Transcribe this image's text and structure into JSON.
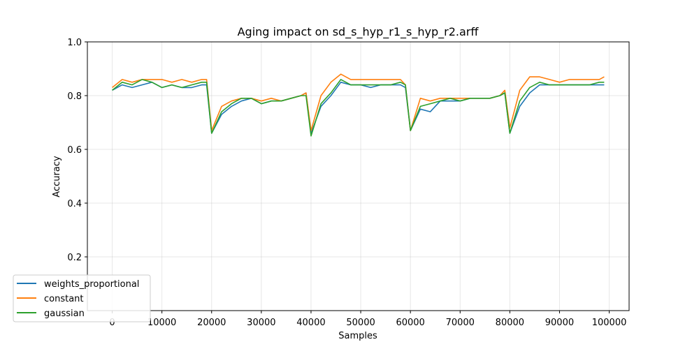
{
  "chart_data": {
    "type": "line",
    "title": "Aging impact on sd_s_hyp_r1_s_hyp_r2.arff",
    "xlabel": "Samples",
    "ylabel": "Accuracy",
    "xlim": [
      -5000,
      104000
    ],
    "ylim": [
      0.0,
      1.0
    ],
    "xticks": [
      0,
      10000,
      20000,
      30000,
      40000,
      50000,
      60000,
      70000,
      80000,
      90000,
      100000
    ],
    "xtick_labels": [
      "0",
      "10000",
      "20000",
      "30000",
      "40000",
      "50000",
      "60000",
      "70000",
      "80000",
      "90000",
      "100000"
    ],
    "yticks": [
      0.2,
      0.4,
      0.6,
      0.8,
      1.0
    ],
    "ytick_labels": [
      "0.2",
      "0.4",
      "0.6",
      "0.8",
      "1.0"
    ],
    "grid": true,
    "legend_position": "bottom-left",
    "x": [
      0,
      2000,
      4000,
      6000,
      8000,
      10000,
      12000,
      14000,
      16000,
      18000,
      19000,
      20000,
      22000,
      24000,
      26000,
      28000,
      30000,
      32000,
      34000,
      36000,
      38000,
      39000,
      40000,
      42000,
      44000,
      46000,
      48000,
      50000,
      52000,
      54000,
      56000,
      58000,
      59000,
      60000,
      62000,
      64000,
      66000,
      68000,
      70000,
      72000,
      74000,
      76000,
      78000,
      79000,
      80000,
      82000,
      84000,
      86000,
      88000,
      90000,
      92000,
      94000,
      96000,
      98000,
      99000
    ],
    "series": [
      {
        "name": "weights_proportional",
        "color": "#1f77b4",
        "values": [
          0.82,
          0.84,
          0.83,
          0.84,
          0.85,
          0.83,
          0.84,
          0.83,
          0.83,
          0.84,
          0.84,
          0.66,
          0.73,
          0.76,
          0.78,
          0.79,
          0.77,
          0.78,
          0.78,
          0.79,
          0.8,
          0.81,
          0.66,
          0.76,
          0.8,
          0.85,
          0.84,
          0.84,
          0.83,
          0.84,
          0.84,
          0.84,
          0.83,
          0.67,
          0.75,
          0.74,
          0.78,
          0.78,
          0.78,
          0.79,
          0.79,
          0.79,
          0.8,
          0.81,
          0.66,
          0.76,
          0.81,
          0.84,
          0.84,
          0.84,
          0.84,
          0.84,
          0.84,
          0.84,
          0.84
        ]
      },
      {
        "name": "constant",
        "color": "#ff7f0e",
        "values": [
          0.83,
          0.86,
          0.85,
          0.86,
          0.86,
          0.86,
          0.85,
          0.86,
          0.85,
          0.86,
          0.86,
          0.67,
          0.76,
          0.78,
          0.79,
          0.79,
          0.78,
          0.79,
          0.78,
          0.79,
          0.8,
          0.81,
          0.67,
          0.8,
          0.85,
          0.88,
          0.86,
          0.86,
          0.86,
          0.86,
          0.86,
          0.86,
          0.84,
          0.67,
          0.79,
          0.78,
          0.79,
          0.79,
          0.79,
          0.79,
          0.79,
          0.79,
          0.8,
          0.82,
          0.68,
          0.82,
          0.87,
          0.87,
          0.86,
          0.85,
          0.86,
          0.86,
          0.86,
          0.86,
          0.87
        ]
      },
      {
        "name": "gaussian",
        "color": "#2ca02c",
        "values": [
          0.82,
          0.85,
          0.84,
          0.86,
          0.85,
          0.83,
          0.84,
          0.83,
          0.84,
          0.85,
          0.85,
          0.66,
          0.74,
          0.77,
          0.79,
          0.79,
          0.77,
          0.78,
          0.78,
          0.79,
          0.8,
          0.8,
          0.65,
          0.77,
          0.81,
          0.86,
          0.84,
          0.84,
          0.84,
          0.84,
          0.84,
          0.85,
          0.84,
          0.67,
          0.76,
          0.77,
          0.78,
          0.79,
          0.78,
          0.79,
          0.79,
          0.79,
          0.8,
          0.81,
          0.66,
          0.78,
          0.83,
          0.85,
          0.84,
          0.84,
          0.84,
          0.84,
          0.84,
          0.85,
          0.85
        ]
      }
    ]
  }
}
